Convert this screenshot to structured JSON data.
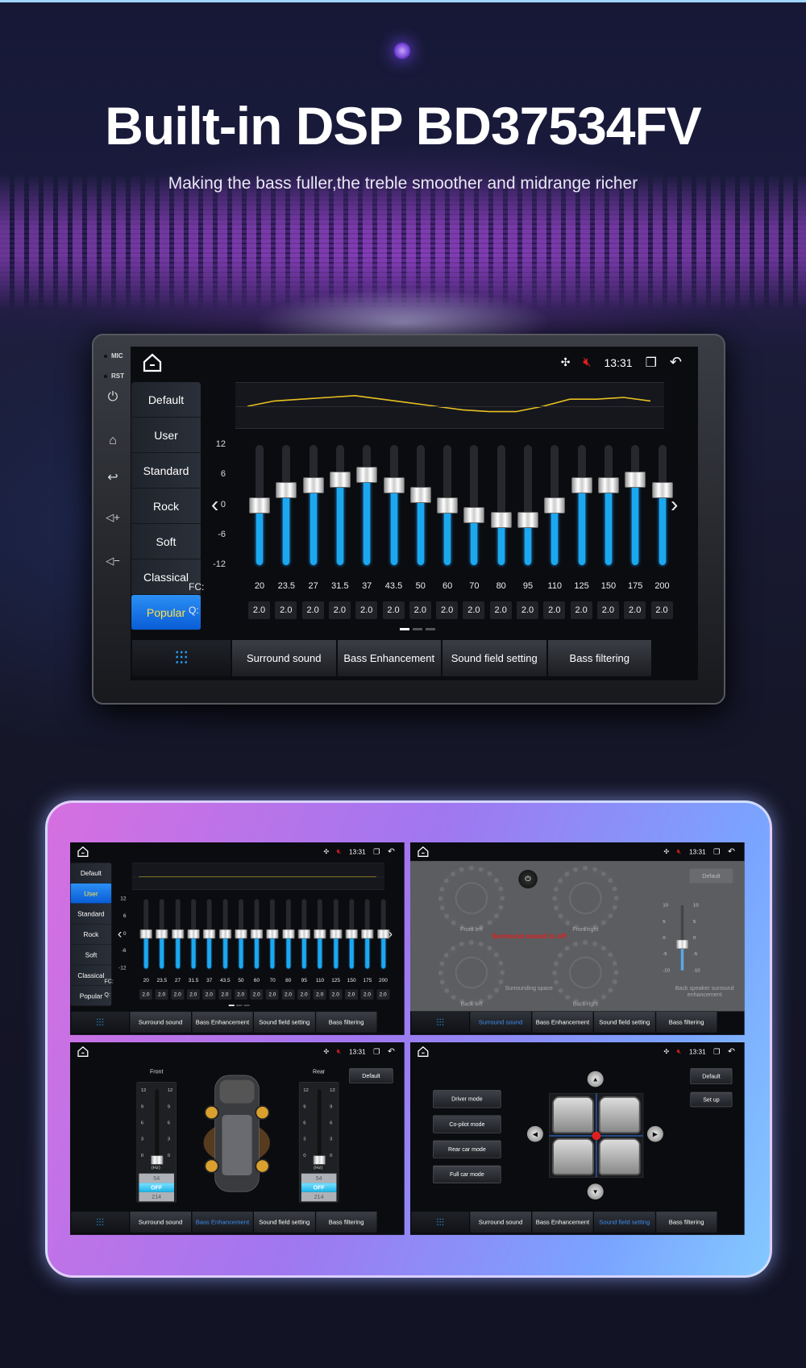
{
  "hero": {
    "title": "Built-in DSP BD37534FV",
    "subtitle": "Making the bass fuller,the treble smoother and midrange richer"
  },
  "device": {
    "mic": "MIC",
    "rst": "RST"
  },
  "status": {
    "time": "13:31"
  },
  "presets": [
    "Default",
    "User",
    "Standard",
    "Rock",
    "Soft",
    "Classical",
    "Popular"
  ],
  "main_eq": {
    "selected_preset": "Popular",
    "gains": [
      0,
      3,
      4,
      5,
      6,
      4,
      2,
      0,
      -2,
      -3,
      -3,
      0,
      4,
      4,
      5,
      3
    ]
  },
  "mini_eq": {
    "selected_preset": "User",
    "gains": [
      0,
      0,
      0,
      0,
      0,
      0,
      0,
      0,
      0,
      0,
      0,
      0,
      0,
      0,
      0,
      0
    ]
  },
  "eq": {
    "y_ticks": [
      "12",
      "6",
      "0",
      "-6",
      "-12"
    ],
    "fc_label": "FC:",
    "q_label": "Q:",
    "fc": [
      "20",
      "23.5",
      "27",
      "31.5",
      "37",
      "43.5",
      "50",
      "60",
      "70",
      "80",
      "95",
      "110",
      "125",
      "150",
      "175",
      "200"
    ],
    "q": [
      "2.0",
      "2.0",
      "2.0",
      "2.0",
      "2.0",
      "2.0",
      "2.0",
      "2.0",
      "2.0",
      "2.0",
      "2.0",
      "2.0",
      "2.0",
      "2.0",
      "2.0",
      "2.0"
    ],
    "range": [
      -12,
      12
    ]
  },
  "tabs": [
    "Surround sound",
    "Bass Enhancement",
    "Sound field setting",
    "Bass filtering"
  ],
  "surround": {
    "front_left": "Front left",
    "front_right": "Front right",
    "back_left": "Back left",
    "back_right": "Back right",
    "space": "Surrounding space",
    "off_msg": "Surround sound is off",
    "default": "Default",
    "scale": [
      "10",
      "5",
      "0",
      "-5",
      "-10"
    ],
    "back_enh": "Back speaker surround enhancement",
    "level": -2
  },
  "bass": {
    "front": "Front",
    "rear": "Rear",
    "default": "Default",
    "scale": [
      "12",
      "9",
      "6",
      "3",
      "0"
    ],
    "unit": "(Hz)",
    "options": [
      "54",
      "OFF",
      "214"
    ],
    "selected": "OFF"
  },
  "field": {
    "modes": [
      "Driver mode",
      "Co-pilot mode",
      "Rear car mode",
      "Full car mode"
    ],
    "default": "Default",
    "setup": "Set up"
  },
  "colors": {
    "accent": "#1aa9f0",
    "selected_preset": "#0a5dd6",
    "curve": "#e8c020",
    "mute": "#e02020"
  }
}
